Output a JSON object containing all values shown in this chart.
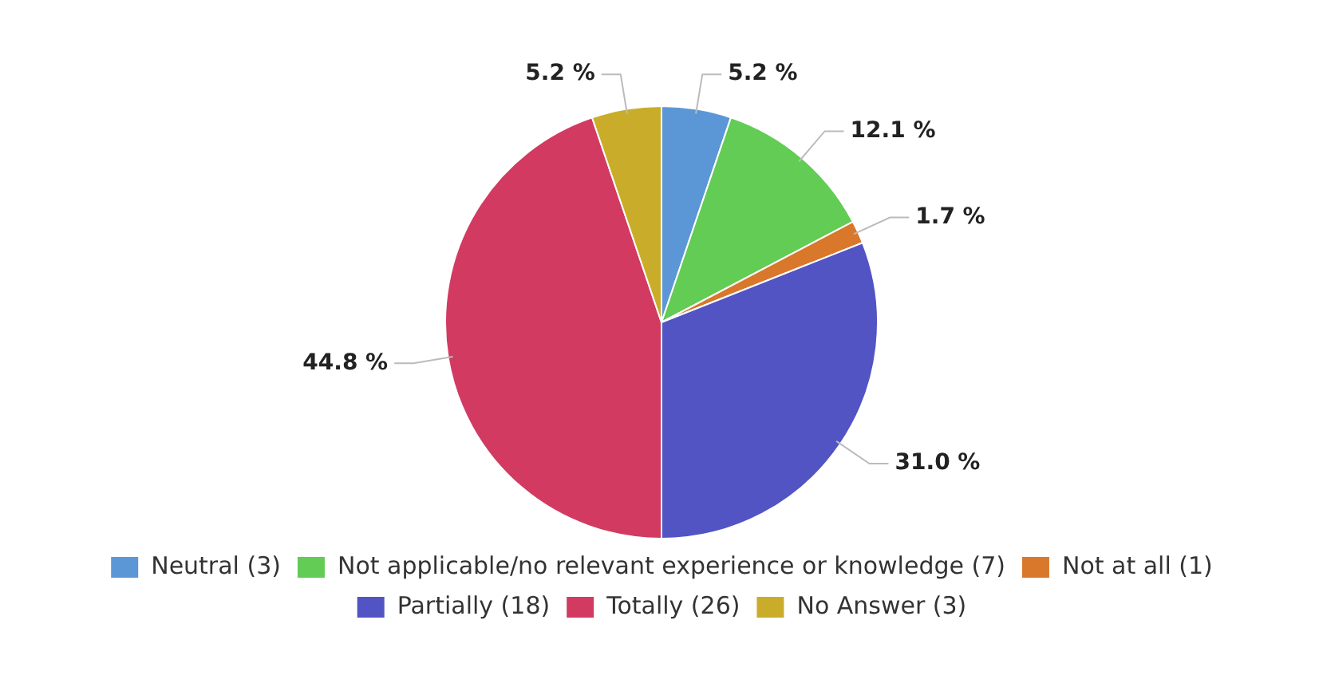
{
  "chart_data": {
    "type": "pie",
    "categories": [
      "Neutral (3)",
      "Not applicable/no relevant experience or knowledge (7)",
      "Not at all (1)",
      "Partially (18)",
      "Totally (26)",
      "No Answer (3)"
    ],
    "values": [
      5.2,
      12.1,
      1.7,
      31.0,
      44.8,
      5.2
    ],
    "value_labels": [
      "5.2 %",
      "12.1 %",
      "1.7 %",
      "31.0 %",
      "44.8 %",
      "5.2 %"
    ],
    "colors": [
      "#5b97d6",
      "#62cc55",
      "#d9772a",
      "#5254c4",
      "#d23a62",
      "#c9ad2a"
    ],
    "legend": "bottom"
  }
}
